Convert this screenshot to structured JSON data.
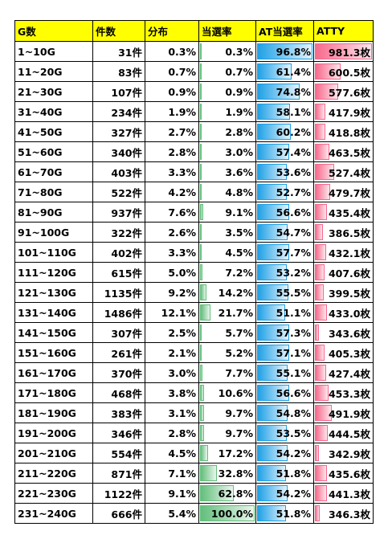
{
  "table": {
    "header": [
      "G数",
      "件数",
      "分布",
      "当選率",
      "AT当選率",
      "ATTY"
    ],
    "rows": [
      [
        "1~10G",
        "31件",
        "0.3%",
        "0.3%",
        "96.8%",
        "981.3枚"
      ],
      [
        "11~20G",
        "83件",
        "0.7%",
        "0.7%",
        "61.4%",
        "600.5枚"
      ],
      [
        "21~30G",
        "107件",
        "0.9%",
        "0.9%",
        "74.8%",
        "577.6枚"
      ],
      [
        "31~40G",
        "234件",
        "1.9%",
        "1.9%",
        "58.1%",
        "417.9枚"
      ],
      [
        "41~50G",
        "327件",
        "2.7%",
        "2.8%",
        "60.2%",
        "418.8枚"
      ],
      [
        "51~60G",
        "340件",
        "2.8%",
        "3.0%",
        "57.4%",
        "463.5枚"
      ],
      [
        "61~70G",
        "403件",
        "3.3%",
        "3.6%",
        "53.6%",
        "527.4枚"
      ],
      [
        "71~80G",
        "522件",
        "4.2%",
        "4.8%",
        "52.7%",
        "479.7枚"
      ],
      [
        "81~90G",
        "937件",
        "7.6%",
        "9.1%",
        "56.6%",
        "435.4枚"
      ],
      [
        "91~100G",
        "322件",
        "2.6%",
        "3.5%",
        "54.7%",
        "386.5枚"
      ],
      [
        "101~110G",
        "402件",
        "3.3%",
        "4.5%",
        "57.7%",
        "432.1枚"
      ],
      [
        "111~120G",
        "615件",
        "5.0%",
        "7.2%",
        "53.2%",
        "407.6枚"
      ],
      [
        "121~130G",
        "1135件",
        "9.2%",
        "14.2%",
        "55.5%",
        "399.5枚"
      ],
      [
        "131~140G",
        "1486件",
        "12.1%",
        "21.7%",
        "51.1%",
        "433.0枚"
      ],
      [
        "141~150G",
        "307件",
        "2.5%",
        "5.7%",
        "57.3%",
        "343.6枚"
      ],
      [
        "151~160G",
        "261件",
        "2.1%",
        "5.2%",
        "57.1%",
        "405.3枚"
      ],
      [
        "161~170G",
        "370件",
        "3.0%",
        "7.7%",
        "55.1%",
        "427.4枚"
      ],
      [
        "171~180G",
        "468件",
        "3.8%",
        "10.6%",
        "56.6%",
        "453.3枚"
      ],
      [
        "181~190G",
        "383件",
        "3.1%",
        "9.7%",
        "54.8%",
        "491.9枚"
      ],
      [
        "191~200G",
        "346件",
        "2.8%",
        "9.7%",
        "53.5%",
        "444.5枚"
      ],
      [
        "201~210G",
        "554件",
        "4.5%",
        "17.2%",
        "54.2%",
        "342.9枚"
      ],
      [
        "211~220G",
        "871件",
        "7.1%",
        "32.8%",
        "51.8%",
        "435.6枚"
      ],
      [
        "221~230G",
        "1122件",
        "9.1%",
        "62.8%",
        "54.2%",
        "441.3枚"
      ],
      [
        "231~240G",
        "666件",
        "5.4%",
        "100.0%",
        "51.8%",
        "346.3枚"
      ]
    ]
  }
}
